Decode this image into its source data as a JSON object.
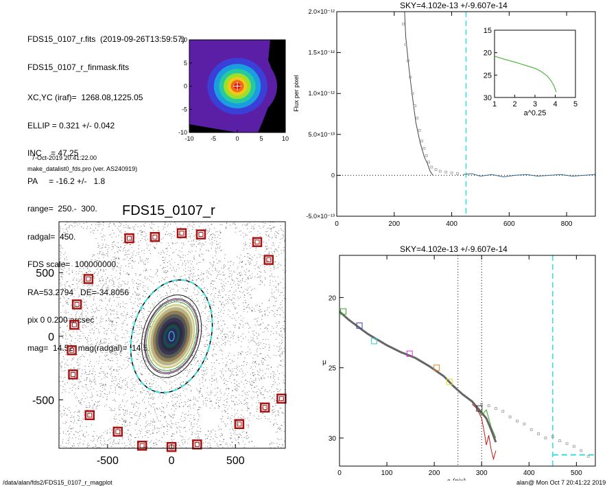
{
  "header": {
    "lines": [
      "FDS15_0107_r.fits  (2019-09-26T13:59:57)",
      "FDS15_0107_r_finmask.fits",
      "XC,YC (iraf)=  1268.08,1225.05",
      "ELLIP = 0.321 +/- 0.042",
      "INC    = 47.25",
      "PA     = -16.2 +/-   1.8",
      "range=  250.-  300.",
      "radgal=  450.",
      "FDS scale=  100000000.",
      "RA=53.2794   DE=-34.8056",
      "pix 0 0.200 arcsec",
      "mag=  14.52  mag(radgal)=  14.52"
    ],
    "date_line": "7-Oct-2019 20:41:22.00",
    "program_line": "make_datalist0_fds.pro (ver. AS240919)"
  },
  "footer": {
    "path": "/data/alan/fds2/FDS15_0107_r_magplot",
    "stamp": "alan@  Mon Oct  7 20:41:22 2019"
  },
  "colors": {
    "cyan": "#33dddd",
    "darkred": "#aa1111",
    "green": "#33aa22",
    "gray_points": "#999999",
    "profile": "#666666"
  },
  "chart_data": [
    {
      "id": "thumbnail",
      "type": "heatmap",
      "title": "",
      "xlim": [
        -10,
        10
      ],
      "ylim": [
        -10,
        10
      ],
      "xticks": [
        "-10",
        "-5",
        "0",
        "5",
        "10"
      ],
      "yticks": [
        "-10",
        "-5",
        "0",
        "5",
        "10"
      ],
      "center": [
        0,
        0
      ],
      "color_levels": [
        "#000000",
        "#5b1fa6",
        "#3a3fd8",
        "#1a9ee0",
        "#27c9a0",
        "#9de02a",
        "#f2c81a",
        "#f06a1a",
        "#e01010"
      ]
    },
    {
      "id": "galaxy_image",
      "type": "scatter",
      "title": "FDS15_0107_r",
      "xticks": [
        "-500",
        "0",
        "500"
      ],
      "yticks": [
        "500",
        "0",
        "-500"
      ],
      "xlim": [
        -880,
        890
      ],
      "ylim": [
        -880,
        900
      ],
      "ellipse_pa_deg": -16.2,
      "ellipse_ellip": 0.321,
      "outer_radius": 450,
      "boxes": [
        [
          -330,
          770
        ],
        [
          -130,
          780
        ],
        [
          80,
          810
        ],
        [
          230,
          800
        ],
        [
          670,
          740
        ],
        [
          760,
          600
        ],
        [
          -650,
          450
        ],
        [
          -740,
          250
        ],
        [
          -760,
          90
        ],
        [
          -780,
          -110
        ],
        [
          -770,
          -300
        ],
        [
          -640,
          -620
        ],
        [
          -420,
          -750
        ],
        [
          -230,
          -860
        ],
        [
          0,
          -870
        ],
        [
          200,
          -850
        ],
        [
          530,
          -690
        ],
        [
          730,
          -560
        ],
        [
          860,
          -490
        ]
      ]
    },
    {
      "id": "sky_profile",
      "type": "line",
      "title": "SKY=4.102e-13 +/-9.607e-14",
      "xlabel": "",
      "ylabel": "Flux per pixel",
      "xlim": [
        0,
        900
      ],
      "ylim": [
        -5e-13,
        2e-12
      ],
      "xticks": [
        "0",
        "200",
        "400",
        "600",
        "800"
      ],
      "yticks": [
        "-5.0×10⁻¹³",
        "0",
        "5.0×10⁻¹³",
        "1.0×10⁻¹²",
        "1.5×10⁻¹²",
        "2.0×10⁻¹²"
      ],
      "ytick_values": [
        -5e-13,
        0,
        5e-13,
        1e-12,
        1.5e-12,
        2e-12
      ],
      "vline": 450,
      "series": [
        {
          "x": [
            236,
            240,
            250,
            262,
            275,
            290,
            305,
            315,
            325,
            335
          ],
          "y": [
            2e-12,
            1.7e-12,
            1.35e-12,
            1e-12,
            6.5e-13,
            4e-13,
            2.2e-13,
            1.5e-13,
            5e-14,
            0
          ]
        },
        {
          "x": [
            440,
            470,
            500,
            540,
            580,
            620,
            660,
            700,
            740,
            780,
            820,
            860,
            900
          ],
          "y": [
            1e-14,
            2e-14,
            -1e-14,
            1e-14,
            -2e-14,
            0,
            1e-14,
            -1e-14,
            0,
            1e-14,
            -1e-14,
            0,
            1e-14
          ]
        }
      ],
      "points_x": [
        232,
        240,
        248,
        256,
        264,
        272,
        280,
        288,
        296,
        304,
        312,
        320,
        330,
        345,
        360,
        380,
        400,
        420
      ],
      "points_y": [
        1.85e-12,
        1.6e-12,
        1.4e-12,
        1.2e-12,
        1e-12,
        8.5e-13,
        7e-13,
        5.5e-13,
        4.2e-13,
        3.3e-13,
        2.4e-13,
        1.6e-13,
        1e-13,
        7e-14,
        5e-14,
        4e-14,
        3e-14,
        2e-14
      ],
      "inset": {
        "xlabel": "a^0.25",
        "xlim": [
          1,
          5
        ],
        "ylim": [
          30,
          15
        ],
        "xticks": [
          "1",
          "2",
          "3",
          "4",
          "5"
        ],
        "yticks": [
          "15",
          "20",
          "25",
          "30"
        ],
        "ytick_values": [
          15,
          20,
          25,
          30
        ],
        "x": [
          1.0,
          1.5,
          2.0,
          2.5,
          3.0,
          3.3,
          3.6,
          3.8,
          3.95,
          4.05
        ],
        "y": [
          20.8,
          21.5,
          22.1,
          22.8,
          23.5,
          24.2,
          25.2,
          26.3,
          27.5,
          28.8
        ]
      }
    },
    {
      "id": "mu_profile",
      "type": "line",
      "title": "SKY=4.102e-13 +/-9.607e-14",
      "xlabel": "a (pix)",
      "ylabel": "μ",
      "xlim": [
        0,
        540
      ],
      "ylim": [
        32,
        17
      ],
      "xticks": [
        "0",
        "100",
        "200",
        "300",
        "400",
        "500"
      ],
      "yticks": [
        "20",
        "25",
        "30"
      ],
      "ytick_values": [
        20,
        25,
        30
      ],
      "vlines": [
        250,
        300
      ],
      "sky_vline": 450,
      "sky_level": 31.2,
      "series": [
        {
          "name": "",
          "x": [
            0,
            20,
            40,
            60,
            80,
            100,
            130,
            160,
            190,
            220,
            240,
            260,
            280,
            300,
            310,
            320,
            330
          ],
          "y": [
            21.0,
            21.6,
            22.1,
            22.6,
            23.0,
            23.4,
            23.9,
            24.3,
            24.9,
            25.6,
            26.3,
            26.9,
            27.4,
            28.2,
            28.6,
            29.4,
            30.3
          ]
        },
        {
          "name": "",
          "x": [
            280,
            290,
            300,
            305,
            310,
            315,
            320,
            325,
            330
          ],
          "y": [
            27.6,
            27.9,
            28.6,
            29.5,
            30.5,
            29.8,
            30.8,
            31.5,
            30.9
          ]
        },
        {
          "name": "",
          "x": [
            280,
            290,
            300,
            310,
            320,
            330
          ],
          "y": [
            27.5,
            27.8,
            28.4,
            28.0,
            29.2,
            30.0
          ]
        }
      ],
      "boxes": [
        {
          "x": 42,
          "y": 22.0,
          "color": "#3344aa"
        },
        {
          "x": 73,
          "y": 23.1,
          "color": "#33cccc"
        },
        {
          "x": 148,
          "y": 24.0,
          "color": "#cc33cc"
        },
        {
          "x": 205,
          "y": 25.0,
          "color": "#dd8822"
        },
        {
          "x": 232,
          "y": 26.0,
          "color": "#dddd22"
        },
        {
          "x": 8,
          "y": 21.0,
          "color": "#33aa22"
        },
        {
          "x": 295,
          "y": 27.9,
          "color": "#333333"
        }
      ],
      "points_x": [
        300,
        315,
        330,
        345,
        360,
        375,
        390,
        405,
        420,
        435,
        450,
        465,
        480,
        495,
        510,
        525
      ],
      "points_y": [
        27.6,
        27.7,
        27.9,
        28.1,
        28.5,
        28.8,
        29.0,
        29.4,
        29.7,
        30.0,
        29.9,
        30.2,
        30.4,
        30.6,
        30.9,
        31.3
      ]
    }
  ]
}
